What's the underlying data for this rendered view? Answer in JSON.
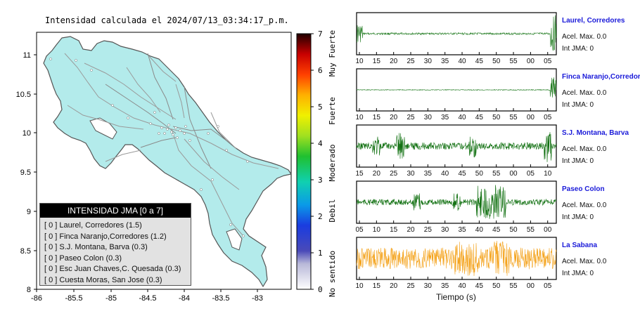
{
  "title": "Intensidad calculada el 2024/07/13_03:34:17_p.m.",
  "map": {
    "x_ticks": [
      "-86",
      "-85.5",
      "-85",
      "-84.5",
      "-84",
      "-83.5",
      "-83"
    ],
    "y_ticks": [
      "11",
      "10.5",
      "10",
      "9.5",
      "9",
      "8.5",
      "8"
    ],
    "land_color": "#b3ebeb",
    "outline_color": "#555555"
  },
  "legend": {
    "title": "INTENSIDAD JMA [0 a 7]",
    "rows": [
      "[ 0 ]  Laurel, Corredores (1.5)",
      "[ 0 ]  Finca Naranjo,Corredores (1.2)",
      "[ 0 ]  S.J. Montana, Barva (0.3)",
      "[ 0 ]  Paseo Colon (0.3)",
      "[ 0 ]  Esc Juan Chaves,C. Quesada (0.3)",
      "[ 0 ]  Cuesta Moras, San Jose (0.3)"
    ]
  },
  "colorbar": {
    "ticks": [
      "0",
      "1",
      "2",
      "3",
      "4",
      "5",
      "6",
      "7"
    ],
    "labels": [
      "No sentido",
      "Debil",
      "Moderado",
      "Fuerte",
      "Muy Fuerte"
    ]
  },
  "stations": [
    {
      "name": "Laurel, Corredores",
      "acel": "Acel. Max. 0.0",
      "int": "Int JMA: 0",
      "color": "#1f7a1f",
      "ticks": [
        "10",
        "15",
        "20",
        "25",
        "30",
        "35",
        "40",
        "45",
        "50",
        "55",
        "00",
        "05"
      ]
    },
    {
      "name": "Finca Naranjo,Corredores",
      "acel": "Acel. Max. 0.0",
      "int": "Int JMA: 0",
      "color": "#1f7a1f",
      "ticks": [
        "10",
        "15",
        "20",
        "25",
        "30",
        "35",
        "40",
        "45",
        "50",
        "55",
        "00",
        "05"
      ]
    },
    {
      "name": "S.J. Montana, Barva",
      "acel": "Acel. Max. 0.0",
      "int": "Int JMA: 0",
      "color": "#0d6e0d",
      "ticks": [
        "15",
        "20",
        "25",
        "30",
        "35",
        "40",
        "45",
        "50",
        "55",
        "00",
        "05",
        "10"
      ]
    },
    {
      "name": "Paseo Colon",
      "acel": "Acel. Max. 0.0",
      "int": "Int JMA: 0",
      "color": "#0d6e0d",
      "ticks": [
        "05",
        "10",
        "15",
        "20",
        "25",
        "30",
        "35",
        "40",
        "45",
        "50",
        "55",
        "00"
      ]
    },
    {
      "name": "La Sabana",
      "acel": "Acel. Max. 0.0",
      "int": "Int JMA: 0",
      "color": "#f4a21a",
      "ticks": [
        "10",
        "15",
        "20",
        "25",
        "30",
        "35",
        "40",
        "45",
        "50",
        "55",
        "00",
        "05"
      ]
    }
  ],
  "x_axis_label": "Tiempo (s)"
}
